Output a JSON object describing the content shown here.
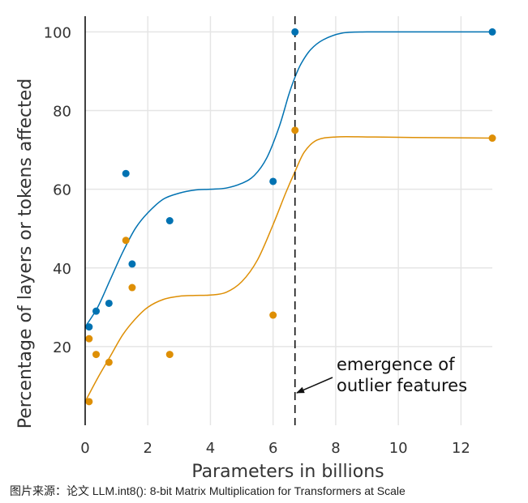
{
  "chart_data": {
    "type": "scatter",
    "xlabel": "Parameters in billions",
    "ylabel": "Percentage of layers or tokens affected",
    "xlim": [
      0,
      13
    ],
    "ylim": [
      0,
      104
    ],
    "x_ticks": [
      0,
      2,
      4,
      6,
      8,
      10,
      12
    ],
    "y_ticks": [
      20,
      40,
      60,
      80,
      100
    ],
    "grid": true,
    "series": [
      {
        "color": "#0072B2",
        "points": [
          [
            0.125,
            25
          ],
          [
            0.35,
            29
          ],
          [
            0.76,
            31
          ],
          [
            1.3,
            64
          ],
          [
            1.5,
            41
          ],
          [
            2.7,
            52
          ],
          [
            6.0,
            62
          ],
          [
            6.7,
            100
          ],
          [
            13,
            100
          ]
        ],
        "curve": [
          [
            0,
            25
          ],
          [
            0.4,
            30
          ],
          [
            0.8,
            37
          ],
          [
            1.2,
            44
          ],
          [
            1.6,
            50
          ],
          [
            2.0,
            54
          ],
          [
            2.5,
            57.5
          ],
          [
            3.0,
            59
          ],
          [
            3.5,
            59.8
          ],
          [
            4.0,
            60
          ],
          [
            4.5,
            60.3
          ],
          [
            5.0,
            61.5
          ],
          [
            5.4,
            63.5
          ],
          [
            5.8,
            68
          ],
          [
            6.2,
            76
          ],
          [
            6.5,
            84
          ],
          [
            6.7,
            88.5
          ],
          [
            6.9,
            92
          ],
          [
            7.2,
            95.5
          ],
          [
            7.6,
            98
          ],
          [
            8.2,
            99.7
          ],
          [
            9.0,
            100
          ],
          [
            10.0,
            100
          ],
          [
            13,
            100
          ]
        ]
      },
      {
        "color": "#DE8F05",
        "points": [
          [
            0.125,
            6
          ],
          [
            0.125,
            22
          ],
          [
            0.35,
            18
          ],
          [
            0.76,
            16
          ],
          [
            1.3,
            47
          ],
          [
            1.5,
            35
          ],
          [
            2.7,
            18
          ],
          [
            6.0,
            28
          ],
          [
            6.7,
            75
          ],
          [
            13,
            73
          ]
        ],
        "curve": [
          [
            0,
            6
          ],
          [
            0.4,
            12
          ],
          [
            0.8,
            17.5
          ],
          [
            1.2,
            23
          ],
          [
            1.6,
            27
          ],
          [
            2.0,
            30
          ],
          [
            2.5,
            32
          ],
          [
            3.0,
            32.8
          ],
          [
            3.5,
            33
          ],
          [
            4.0,
            33.1
          ],
          [
            4.5,
            33.8
          ],
          [
            5.0,
            36.5
          ],
          [
            5.5,
            42
          ],
          [
            6.0,
            51
          ],
          [
            6.4,
            59
          ],
          [
            6.7,
            64.5
          ],
          [
            7.0,
            69.5
          ],
          [
            7.4,
            72.5
          ],
          [
            8.0,
            73.3
          ],
          [
            9.0,
            73.3
          ],
          [
            10.0,
            73.2
          ],
          [
            13,
            73
          ]
        ]
      }
    ],
    "marker_line": {
      "x": 6.7,
      "style": "dashed"
    },
    "annotation": {
      "lines": [
        "emergence of",
        "outlier features"
      ]
    }
  },
  "caption": "图片来源：论文 LLM.int8(): 8-bit Matrix Multiplication for Transformers at Scale"
}
